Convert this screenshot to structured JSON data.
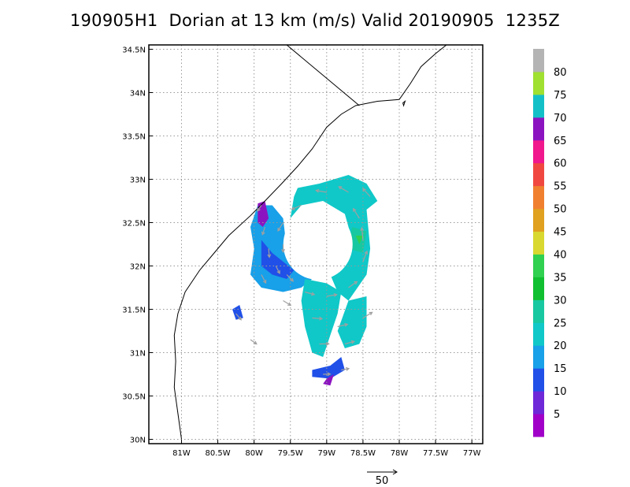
{
  "title": "190905H1  Dorian at 13 km (m/s) Valid 20190905  1235Z",
  "chart_data": {
    "type": "heatmap",
    "title": "190905H1  Dorian at 13 km (m/s) Valid 20190905  1235Z",
    "xlabel": "",
    "ylabel": "",
    "xlim": [
      -81.45,
      -76.85
    ],
    "ylim": [
      29.95,
      34.55
    ],
    "grid": true,
    "x_tick_labels": [
      "81W",
      "80.5W",
      "80W",
      "79.5W",
      "79W",
      "78.5W",
      "78W",
      "77.5W",
      "77W"
    ],
    "y_tick_labels": [
      "30N",
      "30.5N",
      "31N",
      "31.5N",
      "32N",
      "32.5N",
      "33N",
      "33.5N",
      "34N",
      "34.5N"
    ],
    "colorbar": {
      "labels": [
        "5",
        "10",
        "15",
        "20",
        "25",
        "30",
        "35",
        "40",
        "45",
        "50",
        "55",
        "60",
        "65",
        "70",
        "75",
        "80"
      ],
      "colors": [
        "#a000c8",
        "#6e28d8",
        "#2050e8",
        "#18a0e8",
        "#10c8c8",
        "#18c8a0",
        "#10c030",
        "#30d050",
        "#d8d830",
        "#e0a020",
        "#f08030",
        "#f04840",
        "#f0188c",
        "#8c14c0",
        "#14c0c8",
        "#a0e030",
        "#b4b4b4"
      ]
    },
    "wind_reference": {
      "label": "50",
      "speed": 50
    },
    "wind_field": [
      {
        "lon": -79.9,
        "lat": 32.7,
        "speed": 8
      },
      {
        "lon": -79.85,
        "lat": 32.45,
        "speed": 12
      },
      {
        "lon": -79.8,
        "lat": 32.2,
        "speed": 14
      },
      {
        "lon": -79.7,
        "lat": 32.0,
        "speed": 13
      },
      {
        "lon": -79.55,
        "lat": 31.9,
        "speed": 16
      },
      {
        "lon": -79.6,
        "lat": 32.5,
        "speed": 18
      },
      {
        "lon": -79.35,
        "lat": 32.7,
        "speed": 20
      },
      {
        "lon": -79.0,
        "lat": 32.85,
        "speed": 22
      },
      {
        "lon": -78.7,
        "lat": 32.85,
        "speed": 23
      },
      {
        "lon": -78.4,
        "lat": 32.8,
        "speed": 22
      },
      {
        "lon": -78.55,
        "lat": 32.55,
        "speed": 24
      },
      {
        "lon": -78.5,
        "lat": 32.3,
        "speed": 27
      },
      {
        "lon": -78.5,
        "lat": 32.05,
        "speed": 23
      },
      {
        "lon": -78.7,
        "lat": 31.75,
        "speed": 21
      },
      {
        "lon": -79.0,
        "lat": 31.65,
        "speed": 20
      },
      {
        "lon": -79.2,
        "lat": 31.4,
        "speed": 19
      },
      {
        "lon": -78.85,
        "lat": 31.3,
        "speed": 20
      },
      {
        "lon": -78.5,
        "lat": 31.4,
        "speed": 22
      },
      {
        "lon": -78.75,
        "lat": 31.1,
        "speed": 18
      },
      {
        "lon": -79.1,
        "lat": 31.1,
        "speed": 17
      },
      {
        "lon": -79.3,
        "lat": 31.7,
        "speed": 18
      },
      {
        "lon": -79.9,
        "lat": 31.9,
        "speed": 17
      },
      {
        "lon": -79.6,
        "lat": 31.6,
        "speed": 15
      },
      {
        "lon": -80.25,
        "lat": 31.45,
        "speed": 12
      },
      {
        "lon": -80.05,
        "lat": 31.15,
        "speed": 10
      },
      {
        "lon": -79.05,
        "lat": 30.75,
        "speed": 9
      },
      {
        "lon": -78.8,
        "lat": 30.8,
        "speed": 11
      },
      {
        "lon": -79.6,
        "lat": 32.25,
        "speed": 11
      }
    ]
  }
}
